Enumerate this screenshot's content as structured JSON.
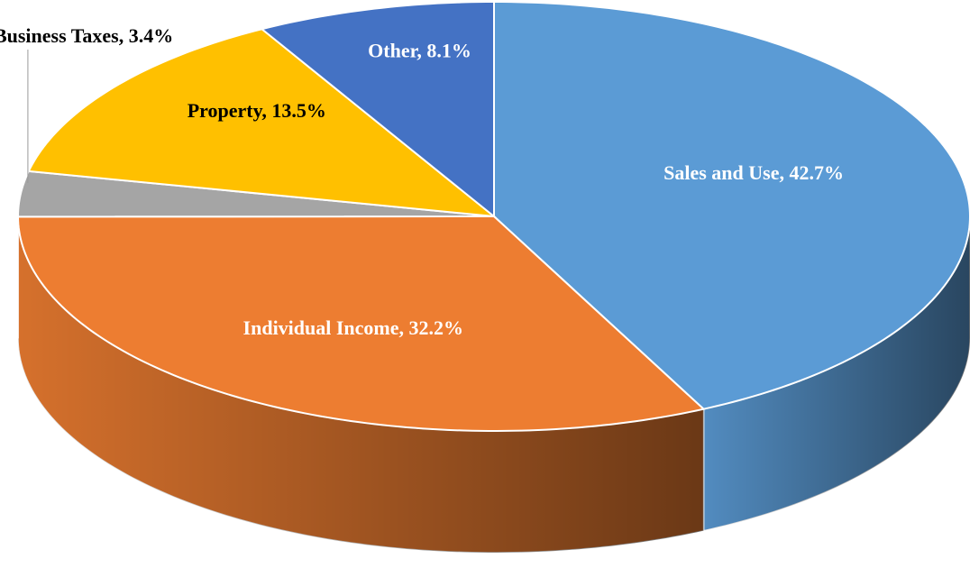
{
  "chart_data": {
    "type": "pie3d",
    "values": [
      42.7,
      32.2,
      3.4,
      13.5,
      8.1
    ],
    "value_labels": [
      "Sales and Use, 42.7%",
      "Individual Income, 32.2%",
      "Business Taxes, 3.4%",
      "Property, 13.5%",
      "Other, 8.1%"
    ],
    "colors": [
      "#5b9bd5",
      "#ed7d31",
      "#a5a5a5",
      "#ffc000",
      "#4472c4"
    ],
    "label_colors": [
      "#ffffff",
      "#ffffff",
      "#000000",
      "#000000",
      "#ffffff"
    ]
  }
}
